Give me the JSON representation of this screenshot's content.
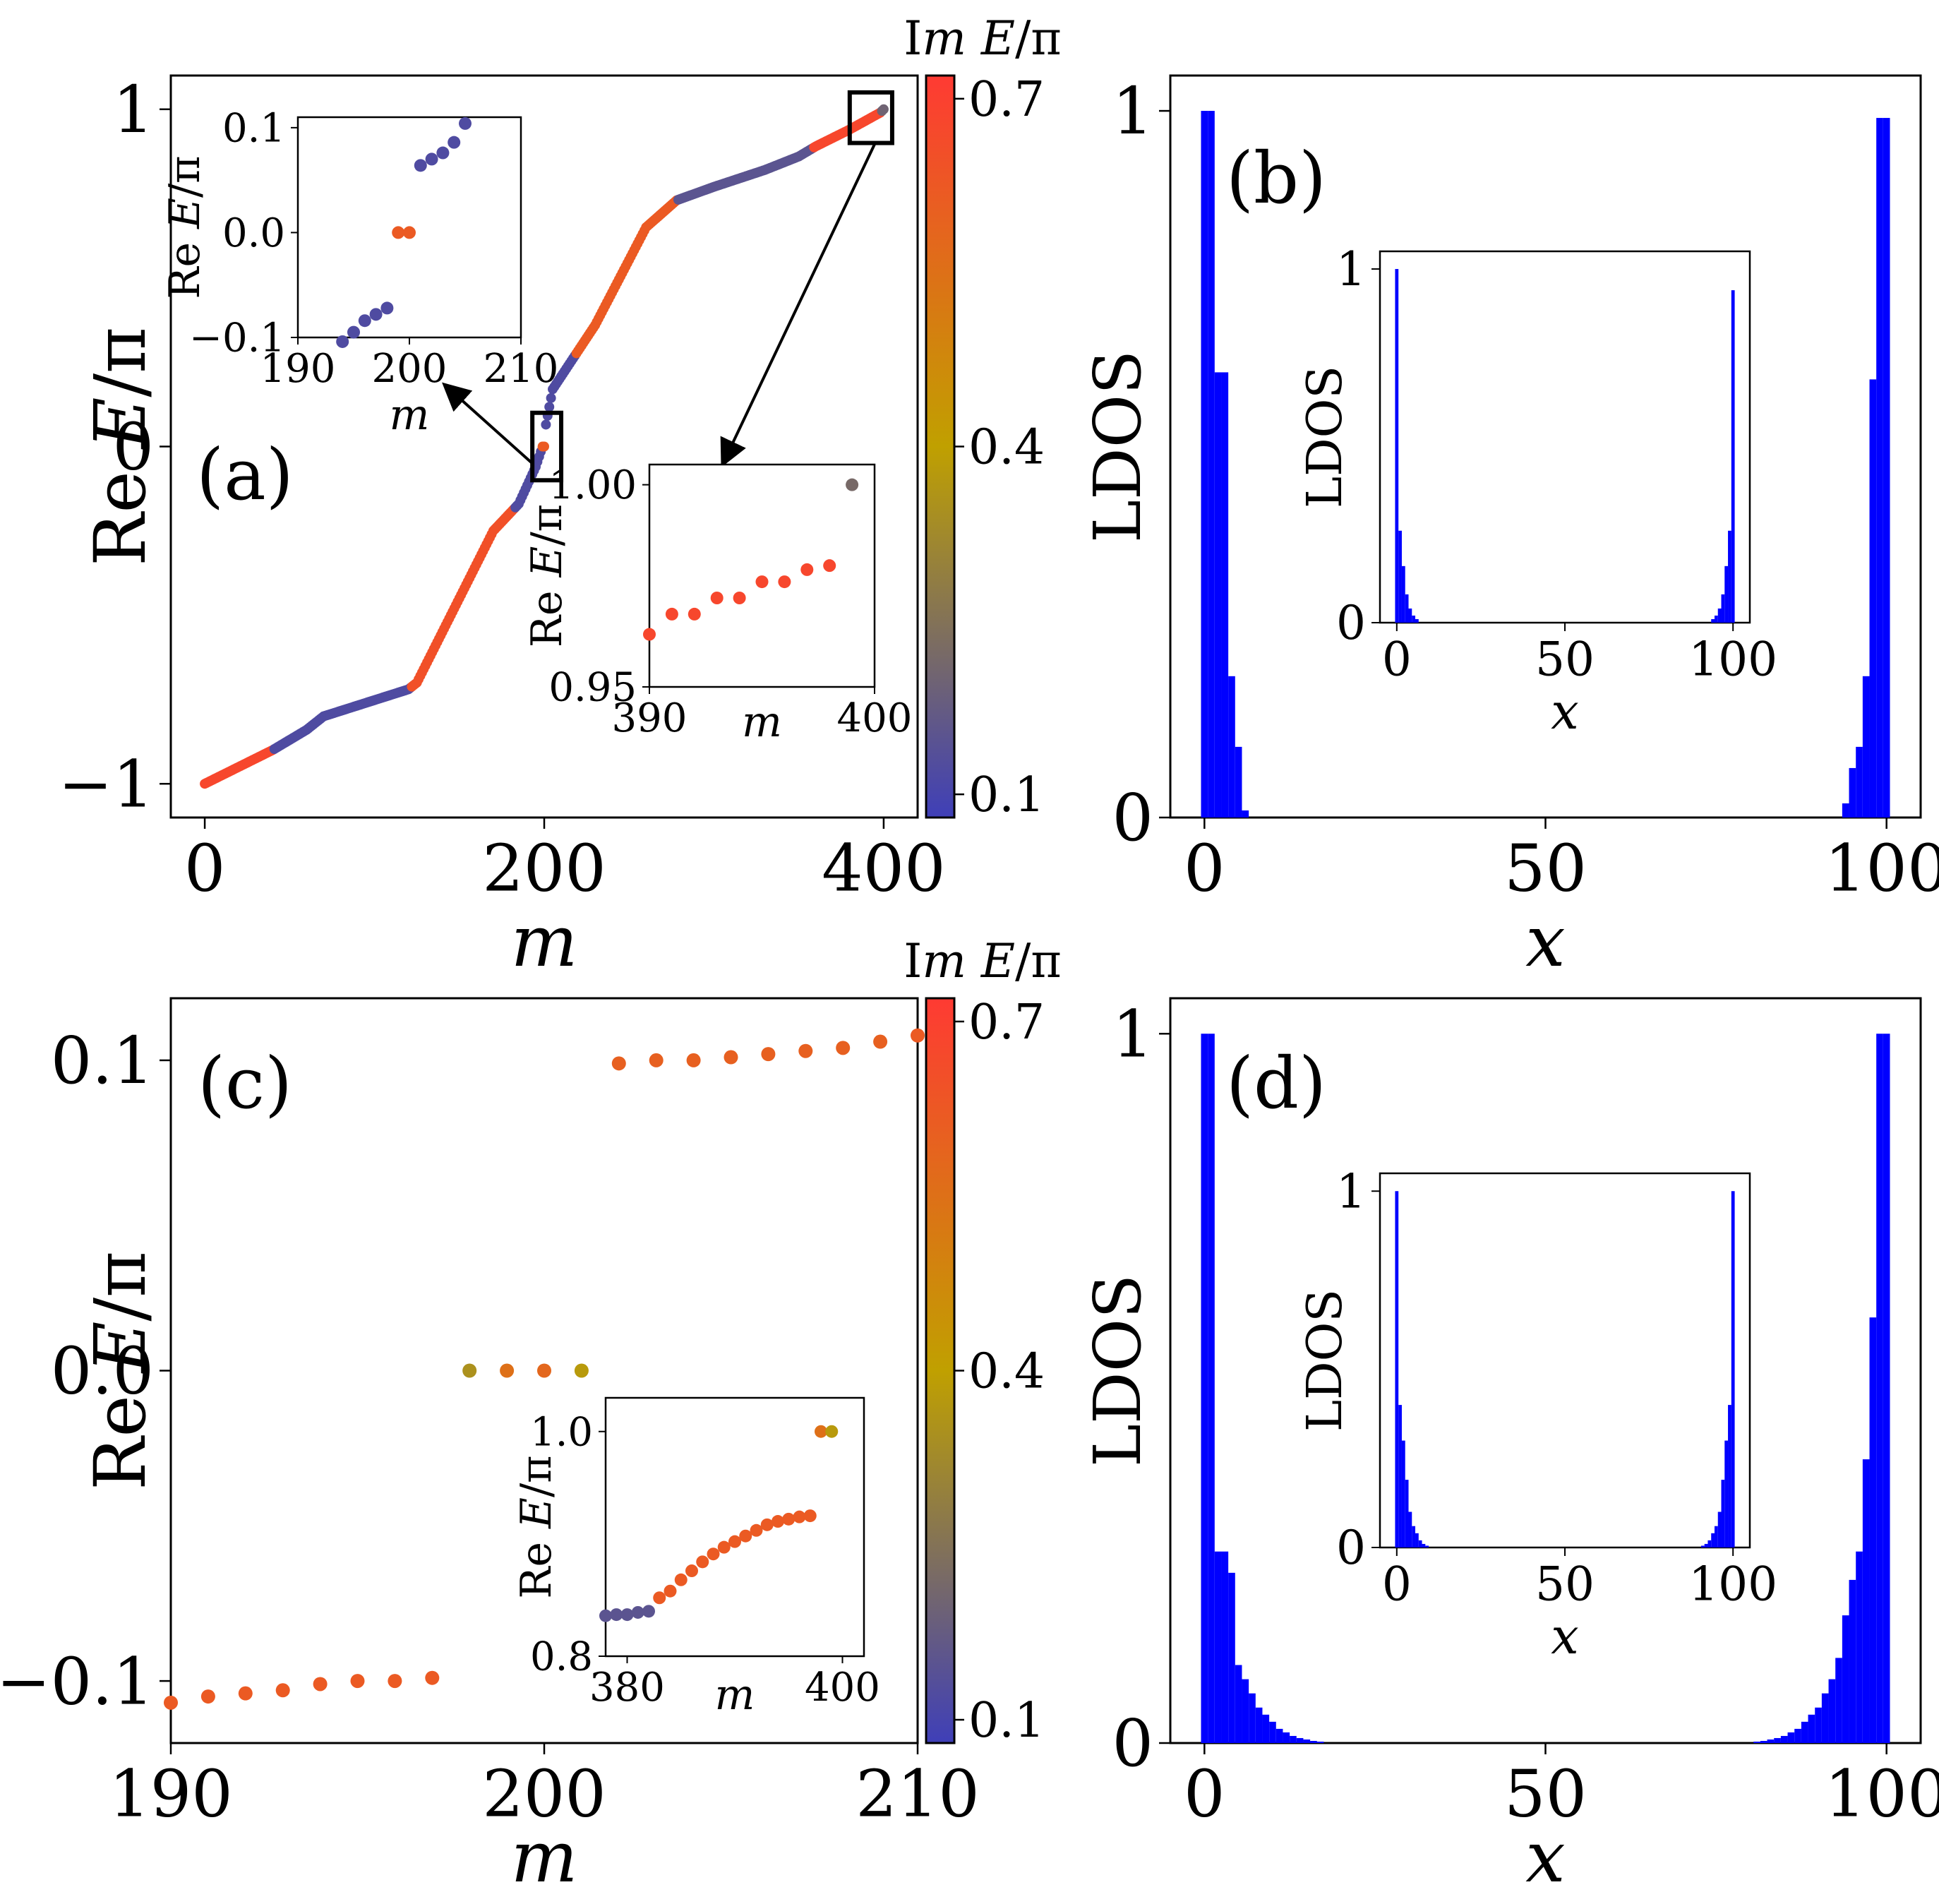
{
  "colors": {
    "low": "#3f3fb8",
    "mid": "#c0a000",
    "high": "#ff3a33",
    "bar": "#0000ff",
    "arrow": "#000000"
  },
  "chart_data": [
    {
      "id": "a",
      "type": "scatter",
      "panel_label": "(a)",
      "xlabel": "m",
      "ylabel": "Re E/π",
      "xlim": [
        -20,
        420
      ],
      "ylim": [
        -1.1,
        1.1
      ],
      "xticks": [
        0,
        200,
        400
      ],
      "yticks": [
        -1,
        0,
        1
      ],
      "ytick_labels": [
        "−1",
        "0",
        "1"
      ],
      "series_description": "eigenvalues sorted by real part, colored by Im E/π",
      "points_generator": {
        "count": 401,
        "x_start": 0,
        "x_end": 400
      },
      "curve_knots": [
        [
          0,
          -1.0
        ],
        [
          20,
          -0.95
        ],
        [
          40,
          -0.9
        ],
        [
          60,
          -0.84
        ],
        [
          70,
          -0.8
        ],
        [
          120,
          -0.72
        ],
        [
          125,
          -0.7
        ],
        [
          150,
          -0.45
        ],
        [
          170,
          -0.25
        ],
        [
          185,
          -0.17
        ],
        [
          195,
          -0.06
        ],
        [
          199,
          0.0
        ],
        [
          200,
          0.0
        ],
        [
          201,
          0.065
        ],
        [
          205,
          0.17
        ],
        [
          230,
          0.36
        ],
        [
          260,
          0.65
        ],
        [
          278,
          0.73
        ],
        [
          300,
          0.77
        ],
        [
          330,
          0.82
        ],
        [
          350,
          0.86
        ],
        [
          360,
          0.89
        ],
        [
          380,
          0.94
        ],
        [
          398,
          0.99
        ],
        [
          400,
          1.0
        ]
      ],
      "color_bands": [
        {
          "from": 0,
          "to": 40,
          "im": 0.68
        },
        {
          "from": 41,
          "to": 121,
          "im": 0.12
        },
        {
          "from": 122,
          "to": 182,
          "im": 0.65
        },
        {
          "from": 183,
          "to": 198,
          "im": 0.12
        },
        {
          "from": 199,
          "to": 200,
          "im": 0.62
        },
        {
          "from": 201,
          "to": 218,
          "im": 0.12
        },
        {
          "from": 219,
          "to": 278,
          "im": 0.62
        },
        {
          "from": 279,
          "to": 358,
          "im": 0.15
        },
        {
          "from": 359,
          "to": 398,
          "im": 0.68
        },
        {
          "from": 399,
          "to": 400,
          "im": 0.2
        }
      ],
      "colorbar": {
        "label": "Im E/π",
        "ticks": [
          0.1,
          0.4,
          0.7
        ],
        "tick_labels": [
          "0.1",
          "0.4",
          "0.7"
        ],
        "range": [
          0.08,
          0.72
        ]
      },
      "zoom_boxes": [
        {
          "x": [
            193,
            210
          ],
          "y": [
            -0.1,
            0.1
          ]
        },
        {
          "x": [
            380,
            405
          ],
          "y": [
            0.9,
            1.05
          ]
        }
      ],
      "insets": [
        {
          "xlabel": "m",
          "ylabel": "Re E/π",
          "xlim": [
            190,
            210
          ],
          "ylim": [
            -0.1,
            0.11
          ],
          "xticks": [
            190,
            200,
            210
          ],
          "yticks": [
            -0.1,
            0.0,
            0.1
          ],
          "ytick_labels": [
            "−0.1",
            "0.0",
            "0.1"
          ],
          "points": [
            {
              "x": 194,
              "y": -0.104,
              "im": 0.12
            },
            {
              "x": 195,
              "y": -0.095,
              "im": 0.12
            },
            {
              "x": 196,
              "y": -0.084,
              "im": 0.12
            },
            {
              "x": 197,
              "y": -0.078,
              "im": 0.12
            },
            {
              "x": 198,
              "y": -0.072,
              "im": 0.12
            },
            {
              "x": 199,
              "y": 0.0,
              "im": 0.62
            },
            {
              "x": 200,
              "y": 0.0,
              "im": 0.62
            },
            {
              "x": 201,
              "y": 0.064,
              "im": 0.12
            },
            {
              "x": 202,
              "y": 0.07,
              "im": 0.12
            },
            {
              "x": 203,
              "y": 0.076,
              "im": 0.12
            },
            {
              "x": 204,
              "y": 0.086,
              "im": 0.12
            },
            {
              "x": 205,
              "y": 0.104,
              "im": 0.12
            }
          ]
        },
        {
          "xlabel": "m",
          "ylabel": "Re E/π",
          "xlim": [
            390,
            400
          ],
          "ylim": [
            0.95,
            1.005
          ],
          "xticks": [
            390,
            400
          ],
          "yticks": [
            0.95,
            1.0
          ],
          "ytick_labels": [
            "0.95",
            "1.00"
          ],
          "points": [
            {
              "x": 390,
              "y": 0.963,
              "im": 0.68
            },
            {
              "x": 391,
              "y": 0.968,
              "im": 0.68
            },
            {
              "x": 392,
              "y": 0.968,
              "im": 0.68
            },
            {
              "x": 393,
              "y": 0.972,
              "im": 0.68
            },
            {
              "x": 394,
              "y": 0.972,
              "im": 0.68
            },
            {
              "x": 395,
              "y": 0.976,
              "im": 0.68
            },
            {
              "x": 396,
              "y": 0.976,
              "im": 0.68
            },
            {
              "x": 397,
              "y": 0.979,
              "im": 0.68
            },
            {
              "x": 398,
              "y": 0.98,
              "im": 0.68
            },
            {
              "x": 399,
              "y": 1.0,
              "im": 0.22
            }
          ]
        }
      ]
    },
    {
      "id": "b",
      "type": "bar",
      "panel_label": "(b)",
      "xlabel": "x",
      "ylabel": "LDOS",
      "xlim": [
        -5,
        105
      ],
      "ylim": [
        0,
        1.05
      ],
      "xticks": [
        0,
        50,
        100
      ],
      "yticks": [
        0,
        1
      ],
      "ytick_labels": [
        "0",
        "1"
      ],
      "bars": [
        {
          "x": 0,
          "y": 1.0
        },
        {
          "x": 1,
          "y": 1.0
        },
        {
          "x": 2,
          "y": 0.63
        },
        {
          "x": 3,
          "y": 0.63
        },
        {
          "x": 4,
          "y": 0.2
        },
        {
          "x": 5,
          "y": 0.1
        },
        {
          "x": 6,
          "y": 0.01
        },
        {
          "x": 94,
          "y": 0.02
        },
        {
          "x": 95,
          "y": 0.07
        },
        {
          "x": 96,
          "y": 0.1
        },
        {
          "x": 97,
          "y": 0.2
        },
        {
          "x": 98,
          "y": 0.62
        },
        {
          "x": 99,
          "y": 0.99
        },
        {
          "x": 100,
          "y": 0.99
        }
      ],
      "inset": {
        "xlabel": "x",
        "ylabel": "LDOS",
        "xlim": [
          -5,
          105
        ],
        "ylim": [
          0,
          1.05
        ],
        "xticks": [
          0,
          50,
          100
        ],
        "yticks": [
          0,
          1
        ],
        "bars": [
          {
            "x": 0,
            "y": 1.0
          },
          {
            "x": 1,
            "y": 0.26
          },
          {
            "x": 2,
            "y": 0.16
          },
          {
            "x": 3,
            "y": 0.08
          },
          {
            "x": 4,
            "y": 0.04
          },
          {
            "x": 5,
            "y": 0.02
          },
          {
            "x": 6,
            "y": 0.01
          },
          {
            "x": 94,
            "y": 0.01
          },
          {
            "x": 95,
            "y": 0.02
          },
          {
            "x": 96,
            "y": 0.04
          },
          {
            "x": 97,
            "y": 0.08
          },
          {
            "x": 98,
            "y": 0.16
          },
          {
            "x": 99,
            "y": 0.26
          },
          {
            "x": 100,
            "y": 0.94
          }
        ]
      }
    },
    {
      "id": "c",
      "type": "scatter",
      "panel_label": "(c)",
      "xlabel": "m",
      "ylabel": "Re E/π",
      "xlim": [
        190,
        210
      ],
      "ylim": [
        -0.12,
        0.12
      ],
      "xticks": [
        190,
        200,
        210
      ],
      "yticks": [
        -0.1,
        0.0,
        0.1
      ],
      "ytick_labels": [
        "−0.1",
        "0.0",
        "0.1"
      ],
      "points": [
        {
          "x": 190,
          "y": -0.107,
          "im": 0.62
        },
        {
          "x": 191,
          "y": -0.105,
          "im": 0.62
        },
        {
          "x": 192,
          "y": -0.104,
          "im": 0.62
        },
        {
          "x": 193,
          "y": -0.103,
          "im": 0.62
        },
        {
          "x": 194,
          "y": -0.101,
          "im": 0.62
        },
        {
          "x": 195,
          "y": -0.1,
          "im": 0.62
        },
        {
          "x": 196,
          "y": -0.1,
          "im": 0.62
        },
        {
          "x": 197,
          "y": -0.099,
          "im": 0.62
        },
        {
          "x": 198,
          "y": 0.0,
          "im": 0.35
        },
        {
          "x": 199,
          "y": 0.0,
          "im": 0.55
        },
        {
          "x": 200,
          "y": 0.0,
          "im": 0.58
        },
        {
          "x": 201,
          "y": 0.0,
          "im": 0.38
        },
        {
          "x": 202,
          "y": 0.099,
          "im": 0.6
        },
        {
          "x": 203,
          "y": 0.1,
          "im": 0.6
        },
        {
          "x": 204,
          "y": 0.1,
          "im": 0.6
        },
        {
          "x": 205,
          "y": 0.101,
          "im": 0.6
        },
        {
          "x": 206,
          "y": 0.102,
          "im": 0.6
        },
        {
          "x": 207,
          "y": 0.103,
          "im": 0.6
        },
        {
          "x": 208,
          "y": 0.104,
          "im": 0.6
        },
        {
          "x": 209,
          "y": 0.106,
          "im": 0.6
        },
        {
          "x": 210,
          "y": 0.108,
          "im": 0.62
        }
      ],
      "colorbar": {
        "label": "Im E/π",
        "ticks": [
          0.1,
          0.4,
          0.7
        ],
        "tick_labels": [
          "0.1",
          "0.4",
          "0.7"
        ],
        "range": [
          0.08,
          0.72
        ]
      },
      "inset": {
        "xlabel": "m",
        "ylabel": "Re E/π",
        "xlim": [
          378,
          402
        ],
        "ylim": [
          0.8,
          1.03
        ],
        "xticks": [
          380,
          400
        ],
        "yticks": [
          0.8,
          1.0
        ],
        "ytick_labels": [
          "0.8",
          "1.0"
        ],
        "points": [
          {
            "x": 378,
            "y": 0.836,
            "im": 0.15
          },
          {
            "x": 379,
            "y": 0.837,
            "im": 0.15
          },
          {
            "x": 380,
            "y": 0.837,
            "im": 0.15
          },
          {
            "x": 381,
            "y": 0.839,
            "im": 0.15
          },
          {
            "x": 382,
            "y": 0.84,
            "im": 0.15
          },
          {
            "x": 383,
            "y": 0.852,
            "im": 0.62
          },
          {
            "x": 384,
            "y": 0.858,
            "im": 0.62
          },
          {
            "x": 385,
            "y": 0.868,
            "im": 0.62
          },
          {
            "x": 386,
            "y": 0.876,
            "im": 0.62
          },
          {
            "x": 387,
            "y": 0.884,
            "im": 0.62
          },
          {
            "x": 388,
            "y": 0.891,
            "im": 0.62
          },
          {
            "x": 389,
            "y": 0.897,
            "im": 0.62
          },
          {
            "x": 390,
            "y": 0.902,
            "im": 0.62
          },
          {
            "x": 391,
            "y": 0.907,
            "im": 0.62
          },
          {
            "x": 392,
            "y": 0.912,
            "im": 0.62
          },
          {
            "x": 393,
            "y": 0.917,
            "im": 0.62
          },
          {
            "x": 394,
            "y": 0.92,
            "im": 0.62
          },
          {
            "x": 395,
            "y": 0.922,
            "im": 0.62
          },
          {
            "x": 396,
            "y": 0.924,
            "im": 0.62
          },
          {
            "x": 397,
            "y": 0.925,
            "im": 0.62
          },
          {
            "x": 398,
            "y": 1.0,
            "im": 0.55
          },
          {
            "x": 399,
            "y": 1.0,
            "im": 0.38
          }
        ]
      }
    },
    {
      "id": "d",
      "type": "bar",
      "panel_label": "(d)",
      "xlabel": "x",
      "ylabel": "LDOS",
      "xlim": [
        -5,
        105
      ],
      "ylim": [
        0,
        1.05
      ],
      "xticks": [
        0,
        50,
        100
      ],
      "yticks": [
        0,
        1
      ],
      "ytick_labels": [
        "0",
        "1"
      ],
      "bars": [
        {
          "x": 0,
          "y": 1.0
        },
        {
          "x": 1,
          "y": 1.0
        },
        {
          "x": 2,
          "y": 0.27
        },
        {
          "x": 3,
          "y": 0.27
        },
        {
          "x": 4,
          "y": 0.24
        },
        {
          "x": 5,
          "y": 0.11
        },
        {
          "x": 6,
          "y": 0.09
        },
        {
          "x": 7,
          "y": 0.07
        },
        {
          "x": 8,
          "y": 0.05
        },
        {
          "x": 9,
          "y": 0.04
        },
        {
          "x": 10,
          "y": 0.03
        },
        {
          "x": 11,
          "y": 0.02
        },
        {
          "x": 12,
          "y": 0.015
        },
        {
          "x": 13,
          "y": 0.01
        },
        {
          "x": 14,
          "y": 0.007
        },
        {
          "x": 15,
          "y": 0.005
        },
        {
          "x": 16,
          "y": 0.003
        },
        {
          "x": 17,
          "y": 0.002
        },
        {
          "x": 81,
          "y": 0.002
        },
        {
          "x": 82,
          "y": 0.003
        },
        {
          "x": 83,
          "y": 0.005
        },
        {
          "x": 84,
          "y": 0.007
        },
        {
          "x": 85,
          "y": 0.01
        },
        {
          "x": 86,
          "y": 0.015
        },
        {
          "x": 87,
          "y": 0.02
        },
        {
          "x": 88,
          "y": 0.03
        },
        {
          "x": 89,
          "y": 0.04
        },
        {
          "x": 90,
          "y": 0.05
        },
        {
          "x": 91,
          "y": 0.07
        },
        {
          "x": 92,
          "y": 0.09
        },
        {
          "x": 93,
          "y": 0.12
        },
        {
          "x": 94,
          "y": 0.18
        },
        {
          "x": 95,
          "y": 0.23
        },
        {
          "x": 96,
          "y": 0.27
        },
        {
          "x": 97,
          "y": 0.4
        },
        {
          "x": 98,
          "y": 0.6
        },
        {
          "x": 99,
          "y": 1.0
        },
        {
          "x": 100,
          "y": 1.0
        }
      ],
      "inset": {
        "xlabel": "x",
        "ylabel": "LDOS",
        "xlim": [
          -5,
          105
        ],
        "ylim": [
          0,
          1.05
        ],
        "xticks": [
          0,
          50,
          100
        ],
        "yticks": [
          0,
          1
        ],
        "bars": [
          {
            "x": 0,
            "y": 1.0
          },
          {
            "x": 1,
            "y": 0.4
          },
          {
            "x": 2,
            "y": 0.3
          },
          {
            "x": 3,
            "y": 0.19
          },
          {
            "x": 4,
            "y": 0.1
          },
          {
            "x": 5,
            "y": 0.06
          },
          {
            "x": 6,
            "y": 0.04
          },
          {
            "x": 7,
            "y": 0.02
          },
          {
            "x": 8,
            "y": 0.01
          },
          {
            "x": 9,
            "y": 0.005
          },
          {
            "x": 91,
            "y": 0.005
          },
          {
            "x": 92,
            "y": 0.01
          },
          {
            "x": 93,
            "y": 0.02
          },
          {
            "x": 94,
            "y": 0.04
          },
          {
            "x": 95,
            "y": 0.06
          },
          {
            "x": 96,
            "y": 0.1
          },
          {
            "x": 97,
            "y": 0.19
          },
          {
            "x": 98,
            "y": 0.3
          },
          {
            "x": 99,
            "y": 0.4
          },
          {
            "x": 100,
            "y": 1.0
          }
        ]
      }
    }
  ]
}
